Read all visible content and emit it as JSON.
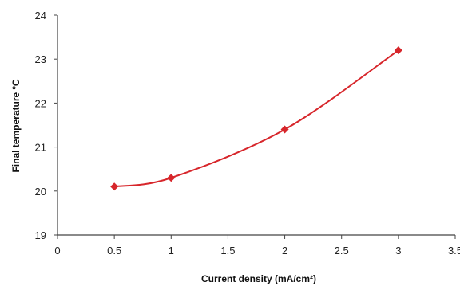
{
  "chart_data": {
    "type": "line",
    "title": "",
    "xlabel": "Current density (mA/cm²)",
    "ylabel": "Final temperature ºC",
    "xlim": [
      0,
      3.5
    ],
    "ylim": [
      19,
      24
    ],
    "xticks": [
      0,
      0.5,
      1,
      1.5,
      2,
      2.5,
      3,
      3.5
    ],
    "xtick_labels": [
      "0",
      "0.5",
      "1",
      "1.5",
      "2",
      "2.5",
      "3",
      "3.5"
    ],
    "yticks": [
      19,
      20,
      21,
      22,
      23,
      24
    ],
    "ytick_labels": [
      "19",
      "20",
      "21",
      "22",
      "23",
      "24"
    ],
    "grid": false,
    "legend": "none",
    "smooth": true,
    "marker": "diamond",
    "series": [
      {
        "color": "#d7262b",
        "x": [
          0.5,
          1,
          2,
          3
        ],
        "y": [
          20.1,
          20.3,
          21.4,
          23.2
        ]
      }
    ]
  }
}
